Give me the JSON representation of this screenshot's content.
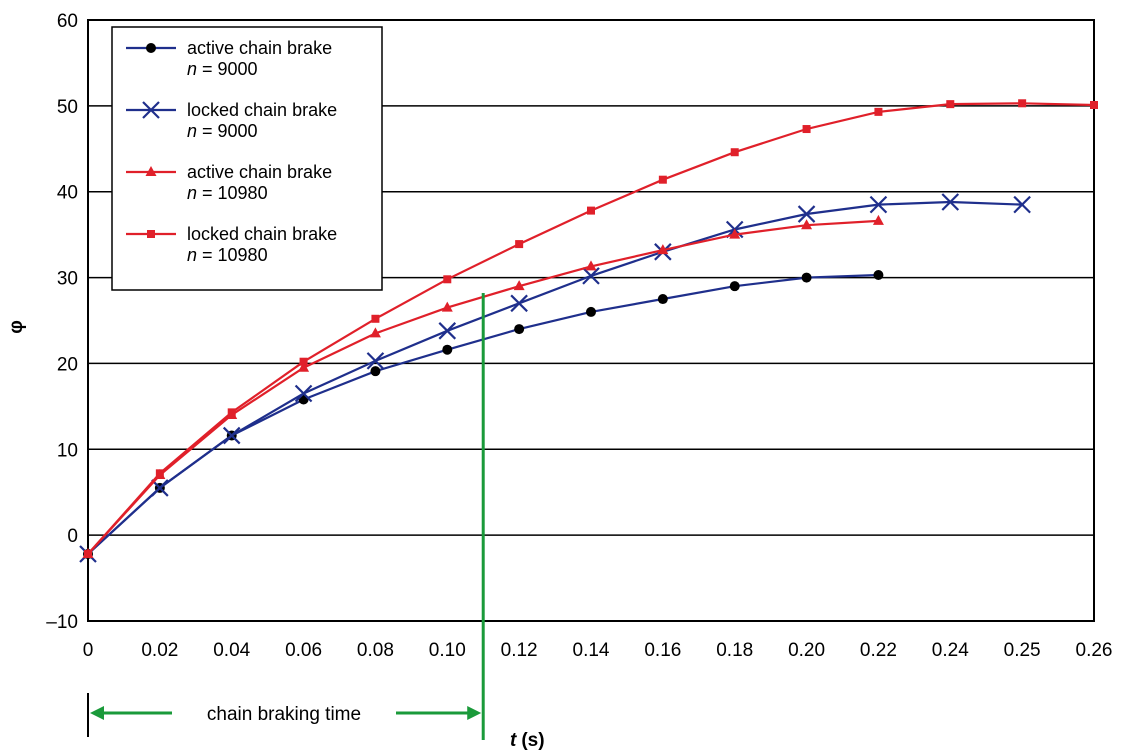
{
  "chart_data": {
    "type": "line",
    "xlabel_var": "t",
    "xlabel_unit": "(s)",
    "ylabel": "φ",
    "x_tick_labels": [
      "0",
      "0.02",
      "0.04",
      "0.06",
      "0.08",
      "0.10",
      "0.12",
      "0.14",
      "0.16",
      "0.18",
      "0.20",
      "0.22",
      "0.24",
      "0.25",
      "0.26"
    ],
    "ylim": [
      -10,
      60
    ],
    "y_ticks": [
      -10,
      0,
      10,
      20,
      30,
      40,
      50,
      60
    ],
    "y_tick_labels": [
      "–10",
      "0",
      "10",
      "20",
      "30",
      "40",
      "50",
      "60"
    ],
    "grid": "horizontal",
    "legend_position": "top-left",
    "series": [
      {
        "label": "active chain brake",
        "n_label": "n",
        "n_value": "= 9000",
        "color": "#1f2f8c",
        "marker": "circle",
        "marker_color": "#000000",
        "points": [
          [
            0,
            -2.2
          ],
          [
            0.02,
            5.5
          ],
          [
            0.04,
            11.6
          ],
          [
            0.06,
            15.8
          ],
          [
            0.08,
            19.1
          ],
          [
            0.1,
            21.6
          ],
          [
            0.12,
            24.0
          ],
          [
            0.14,
            26.0
          ],
          [
            0.16,
            27.5
          ],
          [
            0.18,
            29.0
          ],
          [
            0.2,
            30.0
          ],
          [
            0.22,
            30.3
          ]
        ]
      },
      {
        "label": "locked chain brake",
        "n_label": "n",
        "n_value": "= 9000",
        "color": "#1f2f8c",
        "marker": "x",
        "marker_color": "#1f2f8c",
        "points": [
          [
            0,
            -2.2
          ],
          [
            0.02,
            5.5
          ],
          [
            0.04,
            11.6
          ],
          [
            0.06,
            16.5
          ],
          [
            0.08,
            20.3
          ],
          [
            0.1,
            23.8
          ],
          [
            0.12,
            27.0
          ],
          [
            0.14,
            30.2
          ],
          [
            0.16,
            33.0
          ],
          [
            0.18,
            35.6
          ],
          [
            0.2,
            37.4
          ],
          [
            0.22,
            38.5
          ],
          [
            0.24,
            38.8
          ],
          [
            0.25,
            38.5
          ]
        ]
      },
      {
        "label": "active chain brake",
        "n_label": "n",
        "n_value": "= 10980",
        "color": "#e0202a",
        "marker": "triangle",
        "marker_color": "#e0202a",
        "points": [
          [
            0,
            -2.2
          ],
          [
            0.02,
            7.0
          ],
          [
            0.04,
            14.0
          ],
          [
            0.06,
            19.5
          ],
          [
            0.08,
            23.5
          ],
          [
            0.1,
            26.5
          ],
          [
            0.12,
            29.0
          ],
          [
            0.14,
            31.3
          ],
          [
            0.16,
            33.2
          ],
          [
            0.18,
            35.0
          ],
          [
            0.2,
            36.1
          ],
          [
            0.22,
            36.6
          ]
        ]
      },
      {
        "label": "locked chain brake",
        "n_label": "n",
        "n_value": "= 10980",
        "color": "#e0202a",
        "marker": "square",
        "marker_color": "#e0202a",
        "points": [
          [
            0,
            -2.2
          ],
          [
            0.02,
            7.2
          ],
          [
            0.04,
            14.3
          ],
          [
            0.06,
            20.2
          ],
          [
            0.08,
            25.2
          ],
          [
            0.1,
            29.8
          ],
          [
            0.12,
            33.9
          ],
          [
            0.14,
            37.8
          ],
          [
            0.16,
            41.4
          ],
          [
            0.18,
            44.6
          ],
          [
            0.2,
            47.3
          ],
          [
            0.22,
            49.3
          ],
          [
            0.24,
            50.2
          ],
          [
            0.25,
            50.3
          ],
          [
            0.26,
            50.1
          ]
        ]
      }
    ],
    "marker_line": {
      "x": 0.11,
      "color": "#1a9a3a"
    },
    "annotation": "chain braking time"
  }
}
